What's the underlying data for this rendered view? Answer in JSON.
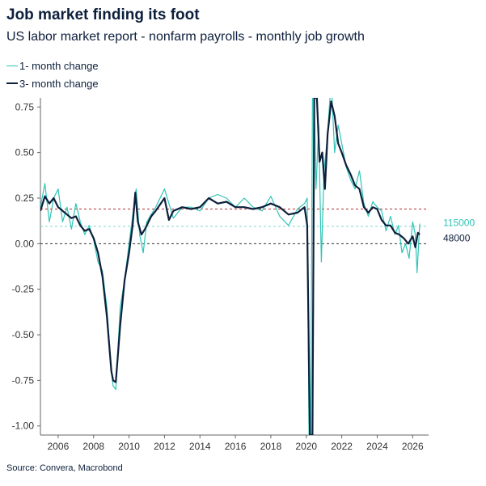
{
  "title": "Job market finding its foot",
  "subtitle": "US labor market report - nonfarm payrolls - monthly job growth",
  "source": "Source: Convera, Macrobond",
  "colors": {
    "one_month": "#2ec4b6",
    "three_month": "#0d1f3c",
    "ref_red": "#b03030",
    "ref_teal": "#7fd6ce",
    "zero": "#333333",
    "axis": "#666666"
  },
  "chart_data": {
    "type": "line",
    "title": "Job market finding its foot",
    "subtitle": "US labor market report - nonfarm payrolls - monthly job growth",
    "xlim": [
      2005.0,
      2026.9
    ],
    "ylim": [
      -1.05,
      0.8
    ],
    "x_ticks": [
      2006,
      2008,
      2010,
      2012,
      2014,
      2016,
      2018,
      2020,
      2022,
      2024,
      2026
    ],
    "x_tick_labels": [
      "2006",
      "2008",
      "2010",
      "2012",
      "2014",
      "2016",
      "2018",
      "2020",
      "2022",
      "2024",
      "2026"
    ],
    "y_ticks": [
      0.75,
      0.5,
      0.25,
      0.0,
      -0.25,
      -0.5,
      -0.75,
      -1.0
    ],
    "y_tick_labels": [
      "0.75",
      "0.50",
      "0.25",
      "0.00",
      "-0.25",
      "-0.50",
      "-0.75",
      "-1.00"
    ],
    "grid": false,
    "legend_position": "top-left",
    "series": [
      {
        "name": "1- month change",
        "x": [
          2005.0,
          2005.25,
          2005.5,
          2005.75,
          2006.0,
          2006.25,
          2006.5,
          2006.75,
          2007.0,
          2007.25,
          2007.5,
          2007.75,
          2008.0,
          2008.25,
          2008.5,
          2008.75,
          2009.0,
          2009.1,
          2009.25,
          2009.5,
          2009.75,
          2010.0,
          2010.2,
          2010.4,
          2010.6,
          2010.8,
          2011.0,
          2011.5,
          2012.0,
          2012.5,
          2013.0,
          2013.5,
          2014.0,
          2014.5,
          2015.0,
          2015.5,
          2016.0,
          2016.5,
          2017.0,
          2017.5,
          2018.0,
          2018.5,
          2019.0,
          2019.5,
          2019.9,
          2020.05,
          2020.15,
          2020.25,
          2020.35,
          2020.45,
          2020.55,
          2020.7,
          2020.85,
          2021.0,
          2021.2,
          2021.4,
          2021.6,
          2021.8,
          2022.0,
          2022.25,
          2022.5,
          2022.75,
          2023.0,
          2023.25,
          2023.5,
          2023.75,
          2024.0,
          2024.25,
          2024.5,
          2024.75,
          2025.0,
          2025.2,
          2025.4,
          2025.6,
          2025.8,
          2026.0,
          2026.15,
          2026.25,
          2026.4
        ],
        "y": [
          0.2,
          0.33,
          0.12,
          0.25,
          0.3,
          0.12,
          0.2,
          0.08,
          0.22,
          0.12,
          0.05,
          0.1,
          0.02,
          -0.1,
          -0.15,
          -0.35,
          -0.7,
          -0.78,
          -0.8,
          -0.35,
          -0.2,
          0.0,
          0.15,
          0.3,
          0.05,
          -0.05,
          0.12,
          0.2,
          0.3,
          0.14,
          0.2,
          0.2,
          0.18,
          0.25,
          0.27,
          0.25,
          0.2,
          0.25,
          0.2,
          0.18,
          0.26,
          0.15,
          0.1,
          0.19,
          0.22,
          0.25,
          -1.05,
          -1.05,
          0.8,
          0.8,
          0.3,
          0.65,
          -0.1,
          0.4,
          0.6,
          0.9,
          0.5,
          0.65,
          0.55,
          0.42,
          0.35,
          0.3,
          0.4,
          0.22,
          0.15,
          0.23,
          0.2,
          0.18,
          0.07,
          0.15,
          0.05,
          0.1,
          -0.05,
          0.0,
          -0.08,
          0.12,
          0.05,
          -0.16,
          0.11
        ]
      },
      {
        "name": "3- month change",
        "x": [
          2005.0,
          2005.25,
          2005.5,
          2005.75,
          2006.0,
          2006.5,
          2006.75,
          2007.0,
          2007.25,
          2007.5,
          2007.75,
          2008.0,
          2008.25,
          2008.5,
          2008.75,
          2009.0,
          2009.1,
          2009.25,
          2009.5,
          2009.75,
          2010.0,
          2010.2,
          2010.35,
          2010.5,
          2010.7,
          2010.9,
          2011.25,
          2011.5,
          2012.0,
          2012.25,
          2012.5,
          2013.0,
          2013.5,
          2014.0,
          2014.5,
          2015.0,
          2015.5,
          2016.0,
          2016.5,
          2017.0,
          2017.5,
          2018.0,
          2018.5,
          2019.0,
          2019.5,
          2019.9,
          2020.05,
          2020.2,
          2020.35,
          2020.45,
          2020.6,
          2020.75,
          2020.9,
          2021.05,
          2021.2,
          2021.4,
          2021.6,
          2021.8,
          2022.0,
          2022.25,
          2022.5,
          2022.75,
          2023.0,
          2023.25,
          2023.5,
          2023.75,
          2024.0,
          2024.25,
          2024.5,
          2024.75,
          2025.0,
          2025.25,
          2025.5,
          2025.75,
          2026.0,
          2026.15,
          2026.3,
          2026.4
        ],
        "y": [
          0.18,
          0.26,
          0.22,
          0.25,
          0.2,
          0.16,
          0.14,
          0.15,
          0.1,
          0.07,
          0.08,
          0.03,
          -0.05,
          -0.18,
          -0.4,
          -0.7,
          -0.75,
          -0.76,
          -0.45,
          -0.2,
          -0.05,
          0.1,
          0.28,
          0.12,
          0.05,
          0.08,
          0.15,
          0.18,
          0.25,
          0.13,
          0.18,
          0.2,
          0.19,
          0.2,
          0.25,
          0.22,
          0.23,
          0.2,
          0.2,
          0.19,
          0.2,
          0.22,
          0.2,
          0.16,
          0.17,
          0.2,
          0.1,
          -1.05,
          -1.05,
          0.8,
          0.8,
          0.45,
          0.5,
          0.3,
          0.6,
          0.78,
          0.7,
          0.55,
          0.5,
          0.43,
          0.38,
          0.32,
          0.3,
          0.2,
          0.17,
          0.2,
          0.19,
          0.13,
          0.1,
          0.1,
          0.06,
          0.05,
          0.03,
          0.0,
          0.04,
          -0.02,
          0.06,
          0.05
        ]
      }
    ],
    "reference_lines": [
      {
        "y": 0.19,
        "color": "#b03030",
        "style": "dashed"
      },
      {
        "y": 0.095,
        "color": "#7fd6ce",
        "style": "dashed"
      },
      {
        "y": 0.0,
        "color": "#333333",
        "style": "dashed"
      }
    ],
    "annotations": [
      {
        "text": "115000",
        "y": 0.115,
        "color": "#2ec4b6"
      },
      {
        "text": "48000",
        "y": 0.03,
        "color": "#0d1f3c"
      }
    ]
  }
}
